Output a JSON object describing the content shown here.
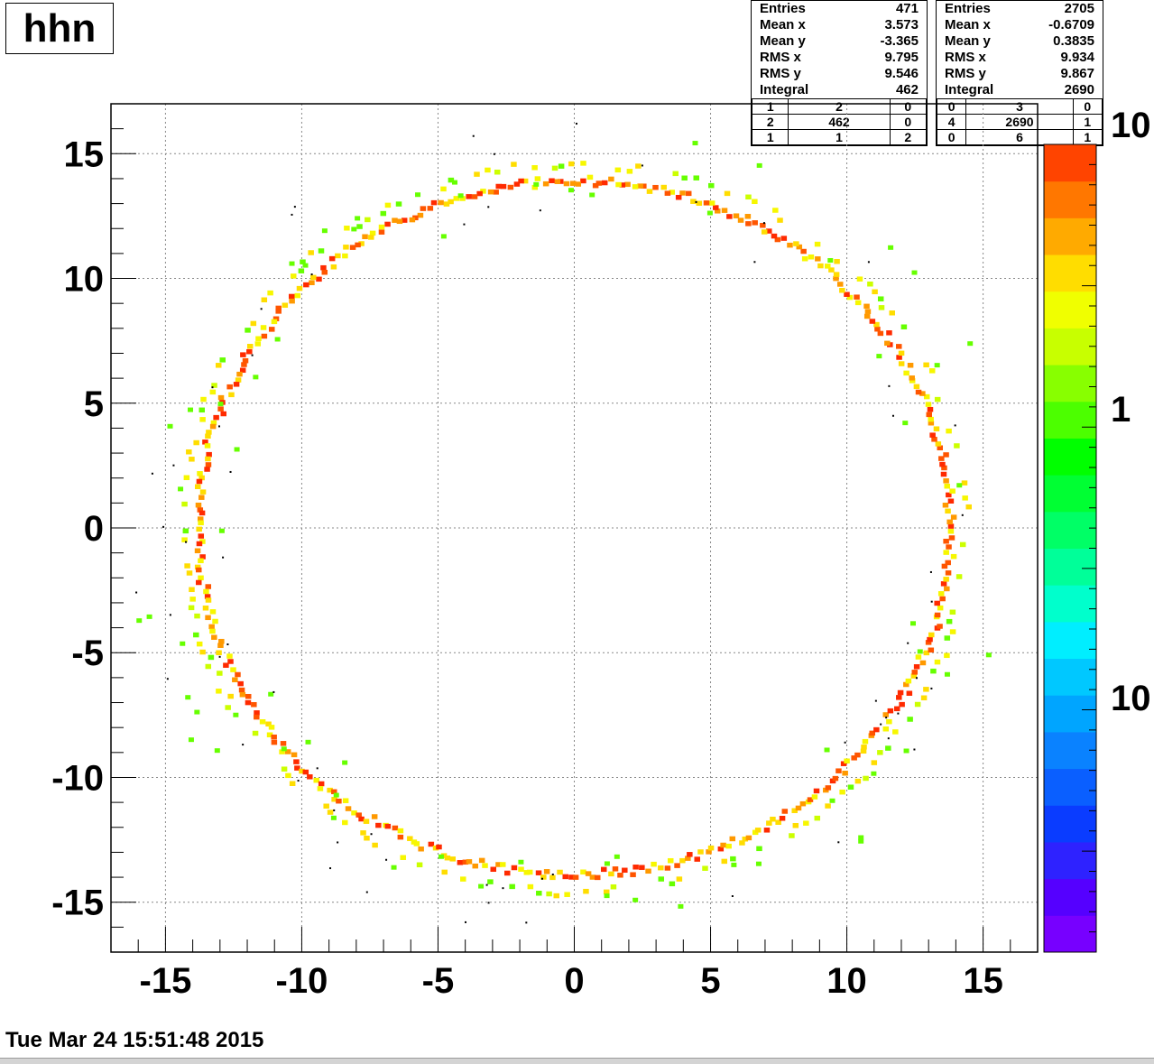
{
  "window": {
    "timestamp": "Tue Mar 24 15:51:48 2015"
  },
  "stats_left": {
    "rows": [
      {
        "label": "Entries",
        "value": "471"
      },
      {
        "label": "Mean x",
        "value": "3.573"
      },
      {
        "label": "Mean y",
        "value": "-3.365"
      },
      {
        "label": "RMS x",
        "value": "9.795"
      },
      {
        "label": "RMS y",
        "value": "9.546"
      },
      {
        "label": "Integral",
        "value": "462"
      }
    ],
    "grid": [
      [
        "1",
        "2",
        "0"
      ],
      [
        "2",
        "462",
        "0"
      ],
      [
        "1",
        "1",
        "2"
      ]
    ]
  },
  "stats_right": {
    "rows": [
      {
        "label": "Entries",
        "value": "2705"
      },
      {
        "label": "Mean x",
        "value": "-0.6709"
      },
      {
        "label": "Mean y",
        "value": "0.3835"
      },
      {
        "label": "RMS x",
        "value": "9.934"
      },
      {
        "label": "RMS y",
        "value": "9.867"
      },
      {
        "label": "Integral",
        "value": "2690"
      }
    ],
    "grid": [
      [
        "0",
        "3",
        "0"
      ],
      [
        "4",
        "2690",
        "1"
      ],
      [
        "0",
        "6",
        "1"
      ]
    ]
  },
  "chart_data": {
    "type": "heatmap",
    "title": "hhn",
    "xlabel": "",
    "ylabel": "",
    "xlim": [
      -17,
      17
    ],
    "ylim": [
      -17,
      17
    ],
    "xticks": [
      -15,
      -10,
      -5,
      0,
      5,
      10,
      15
    ],
    "yticks": [
      -15,
      -10,
      -5,
      0,
      5,
      10,
      15
    ],
    "xtick_labels": [
      "-15",
      "-10",
      "-5",
      "0",
      "5",
      "10",
      "15"
    ],
    "ytick_labels": [
      "-15",
      "-10",
      "-5",
      "0",
      "5",
      "10",
      "15"
    ],
    "grid": true,
    "colorbar": {
      "scale": "log",
      "labels": [
        "10",
        "1",
        "10"
      ],
      "colors": [
        "#7700ff",
        "#5500ff",
        "#2e22ff",
        "#0a3cff",
        "#0a5fff",
        "#0a82ff",
        "#00a5ff",
        "#00c8ff",
        "#00eeff",
        "#00ffcc",
        "#00ff99",
        "#00ff66",
        "#00ff33",
        "#00ff00",
        "#4cff00",
        "#88ff00",
        "#c8ff00",
        "#f0ff00",
        "#ffdd00",
        "#ffaa00",
        "#ff7700",
        "#ff4400"
      ]
    },
    "series": [
      {
        "ring_radius_x": 13.8,
        "ring_radius_y": 13.9
      },
      {
        "ring_radius_x": 14.4,
        "ring_radius_y": 14.6
      }
    ]
  }
}
